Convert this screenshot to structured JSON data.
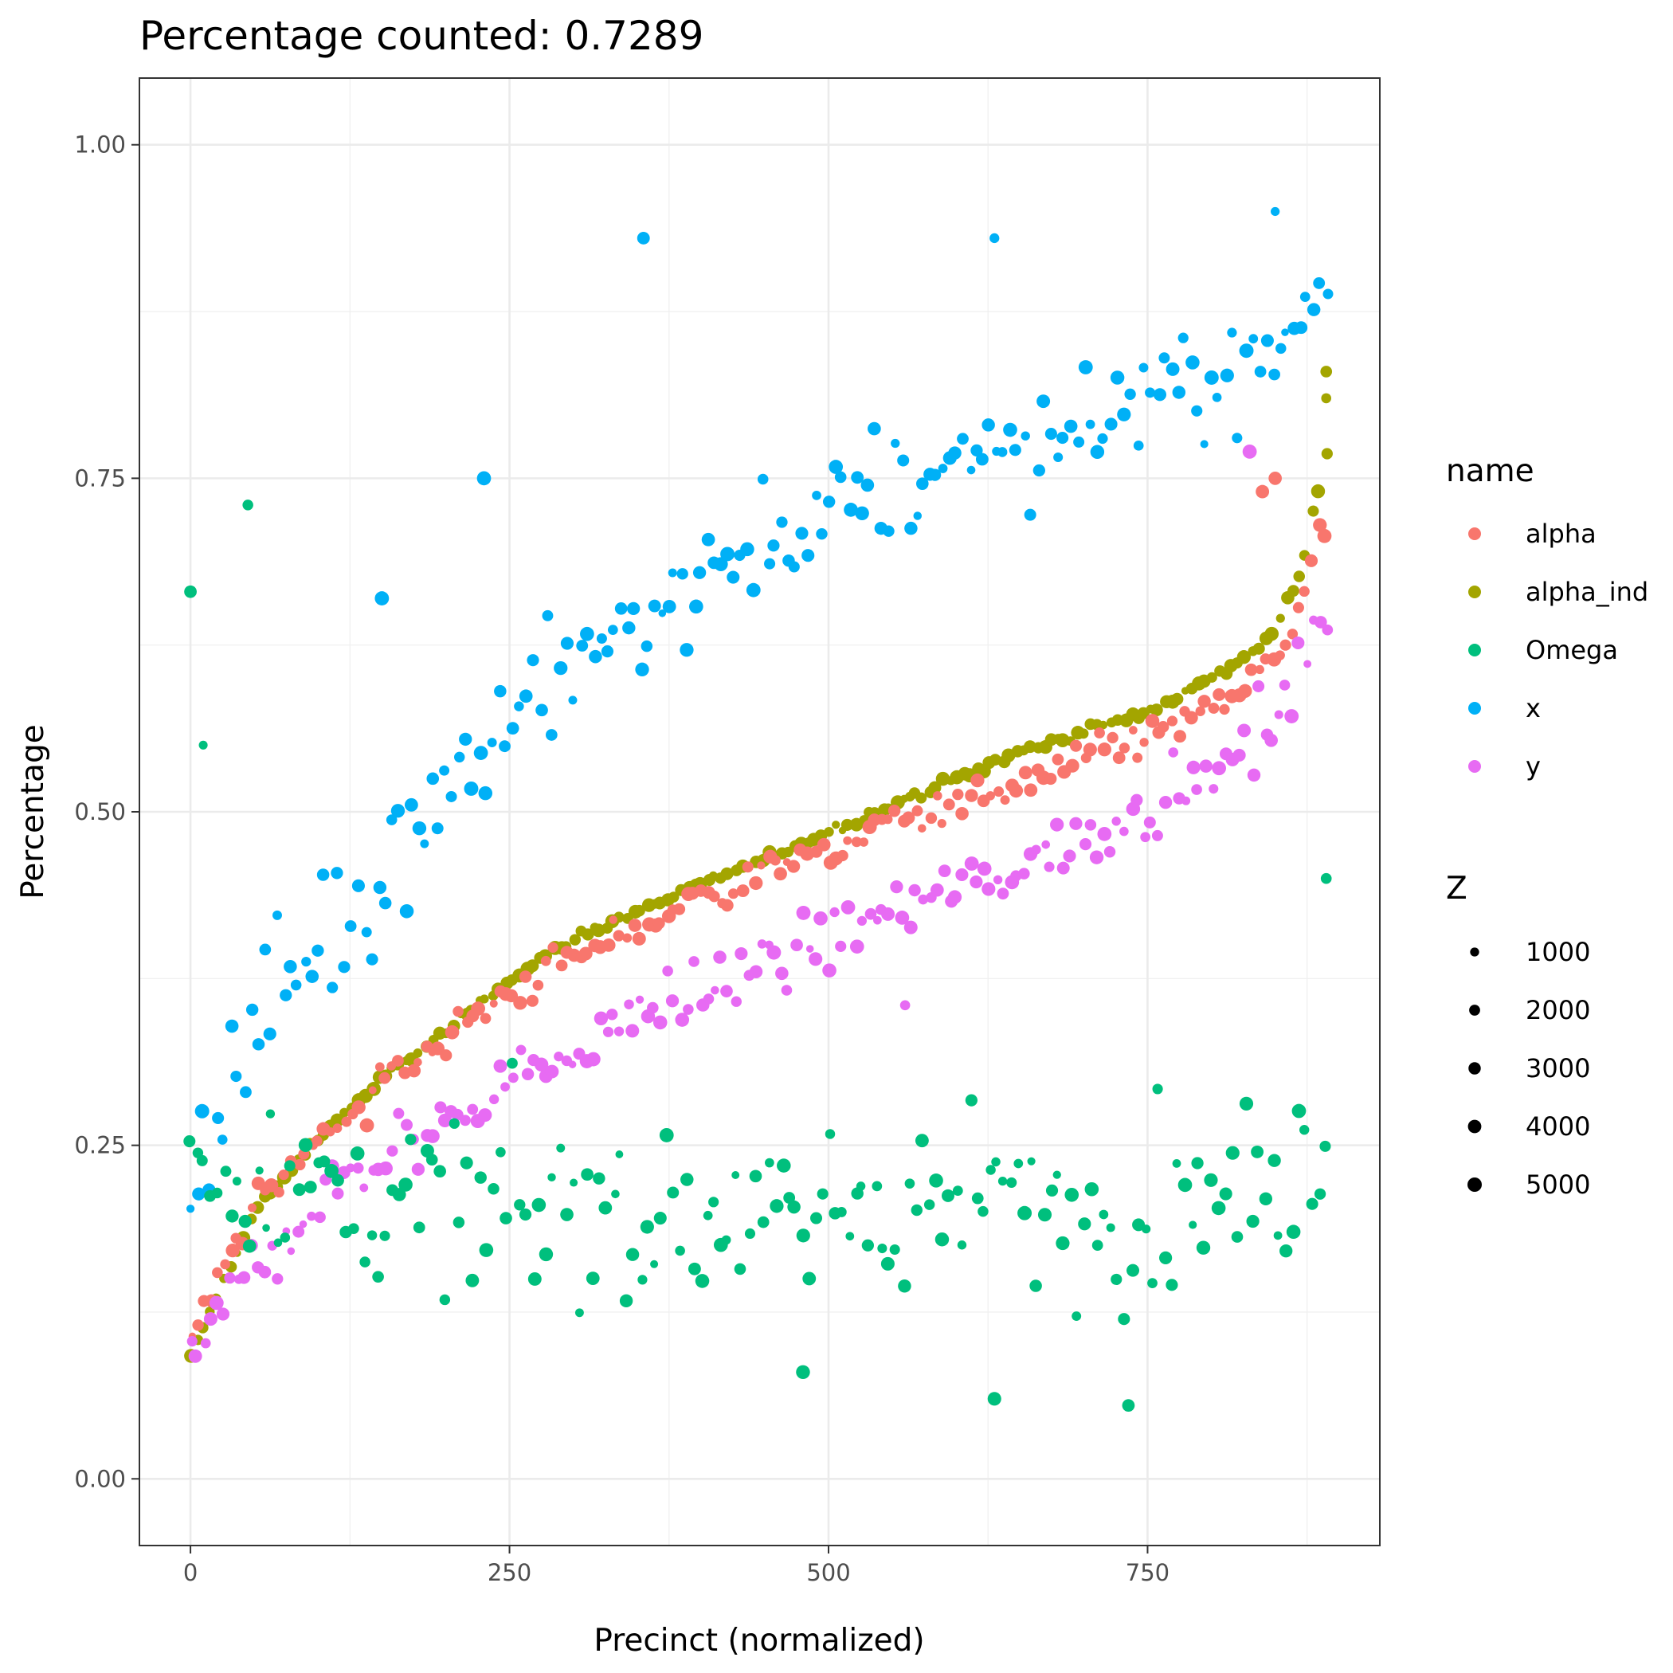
{
  "chart_data": {
    "type": "scatter",
    "title": "Percentage counted: 0.7289",
    "xlabel": "Precinct (normalized)",
    "ylabel": "Percentage",
    "xlim": [
      -40,
      932
    ],
    "ylim": [
      -0.05,
      1.05
    ],
    "x_ticks": [
      0,
      250,
      500,
      750
    ],
    "x_tick_labels": [
      "0",
      "250",
      "500",
      "750"
    ],
    "y_ticks": [
      0.0,
      0.25,
      0.5,
      0.75,
      1.0
    ],
    "y_tick_labels": [
      "0.00",
      "0.25",
      "0.50",
      "0.75",
      "1.00"
    ],
    "grid": true,
    "n_points_per_series": 170,
    "color_legend": {
      "title": "name",
      "placement": "right",
      "entries": [
        {
          "name": "alpha",
          "color": "#F8766D"
        },
        {
          "name": "alpha_ind",
          "color": "#A3A500"
        },
        {
          "name": "Omega",
          "color": "#00BF7D"
        },
        {
          "name": "x",
          "color": "#00B0F6"
        },
        {
          "name": "y",
          "color": "#E76BF3"
        }
      ]
    },
    "size_legend": {
      "title": "Z",
      "placement": "right",
      "entries": [
        {
          "label": "1000",
          "value": 1000
        },
        {
          "label": "2000",
          "value": 2000
        },
        {
          "label": "3000",
          "value": 3000
        },
        {
          "label": "4000",
          "value": 4000
        },
        {
          "label": "5000",
          "value": 5000
        }
      ]
    },
    "series": [
      {
        "name": "alpha_ind",
        "trend": {
          "x": [
            0,
            50,
            100,
            150,
            200,
            250,
            300,
            350,
            400,
            450,
            500,
            550,
            600,
            650,
            700,
            750,
            800,
            830,
            850,
            870,
            890
          ],
          "y": [
            0.09,
            0.2,
            0.255,
            0.3,
            0.335,
            0.375,
            0.405,
            0.425,
            0.445,
            0.465,
            0.485,
            0.505,
            0.525,
            0.545,
            0.56,
            0.575,
            0.6,
            0.62,
            0.635,
            0.68,
            0.77
          ]
        },
        "spread": 0.003,
        "outliers": [
          [
            890,
            0.83
          ],
          [
            890,
            0.81
          ]
        ]
      },
      {
        "name": "alpha",
        "trend": {
          "x": [
            0,
            50,
            100,
            150,
            200,
            250,
            300,
            350,
            400,
            450,
            500,
            550,
            600,
            650,
            700,
            750,
            800,
            830,
            850,
            870,
            890
          ],
          "y": [
            0.1,
            0.205,
            0.255,
            0.295,
            0.33,
            0.365,
            0.39,
            0.415,
            0.435,
            0.455,
            0.47,
            0.49,
            0.505,
            0.52,
            0.54,
            0.555,
            0.575,
            0.595,
            0.615,
            0.65,
            0.72
          ]
        },
        "spread": 0.012,
        "outliers": [
          [
            840,
            0.74
          ],
          [
            850,
            0.75
          ]
        ]
      },
      {
        "name": "y",
        "trend": {
          "x": [
            0,
            50,
            100,
            150,
            200,
            250,
            300,
            350,
            400,
            450,
            500,
            550,
            600,
            650,
            700,
            750,
            800,
            830,
            850,
            870,
            890
          ],
          "y": [
            0.085,
            0.16,
            0.205,
            0.24,
            0.27,
            0.3,
            0.32,
            0.345,
            0.365,
            0.385,
            0.405,
            0.425,
            0.445,
            0.46,
            0.48,
            0.505,
            0.53,
            0.55,
            0.575,
            0.6,
            0.65
          ]
        },
        "spread": 0.022,
        "outliers": [
          [
            560,
            0.355
          ],
          [
            830,
            0.77
          ]
        ]
      },
      {
        "name": "x",
        "trend": {
          "x": [
            0,
            50,
            100,
            150,
            200,
            250,
            300,
            350,
            400,
            450,
            500,
            550,
            600,
            650,
            700,
            750,
            800,
            850,
            890
          ],
          "y": [
            0.23,
            0.34,
            0.4,
            0.46,
            0.52,
            0.57,
            0.61,
            0.645,
            0.675,
            0.7,
            0.72,
            0.74,
            0.76,
            0.775,
            0.79,
            0.805,
            0.825,
            0.845,
            0.9
          ]
        },
        "spread": 0.04,
        "outliers": [
          [
            355,
            0.93
          ],
          [
            630,
            0.93
          ],
          [
            850,
            0.95
          ],
          [
            230,
            0.75
          ],
          [
            150,
            0.66
          ]
        ]
      },
      {
        "name": "Omega",
        "trend": {
          "x": [
            0,
            50,
            100,
            150,
            200,
            300,
            400,
            500,
            600,
            700,
            800,
            850,
            890
          ],
          "y": [
            0.24,
            0.23,
            0.22,
            0.205,
            0.2,
            0.195,
            0.195,
            0.2,
            0.2,
            0.205,
            0.215,
            0.225,
            0.27
          ]
        },
        "spread": 0.055,
        "outliers": [
          [
            45,
            0.73
          ],
          [
            0,
            0.665
          ],
          [
            10,
            0.55
          ],
          [
            890,
            0.45
          ],
          [
            630,
            0.06
          ],
          [
            735,
            0.055
          ],
          [
            480,
            0.08
          ]
        ]
      }
    ]
  }
}
